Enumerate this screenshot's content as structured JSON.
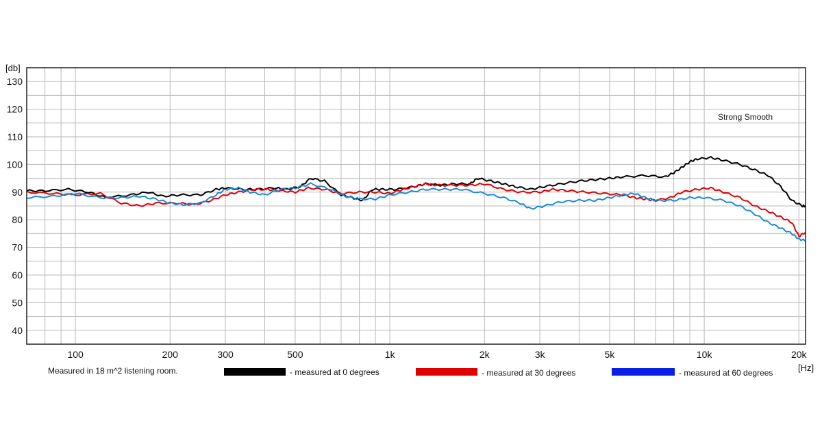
{
  "chart_data": {
    "type": "line",
    "title": "",
    "annotation": "Strong Smooth",
    "footnote": "Measured in 18 m^2  listening room.",
    "xlabel": "[Hz]",
    "ylabel": "[db]",
    "xscale": "log",
    "xlim": [
      70,
      21000
    ],
    "ylim": [
      35,
      135
    ],
    "yticks": [
      40,
      50,
      60,
      70,
      80,
      90,
      100,
      110,
      120,
      130
    ],
    "xticks": [
      {
        "value": 100,
        "label": "100"
      },
      {
        "value": 200,
        "label": "200"
      },
      {
        "value": 300,
        "label": "300"
      },
      {
        "value": 500,
        "label": "500"
      },
      {
        "value": 1000,
        "label": "1k"
      },
      {
        "value": 2000,
        "label": "2k"
      },
      {
        "value": 3000,
        "label": "3k"
      },
      {
        "value": 5000,
        "label": "5k"
      },
      {
        "value": 10000,
        "label": "10k"
      },
      {
        "value": 20000,
        "label": "20k"
      }
    ],
    "grid": true,
    "legend_position": "bottom",
    "series": [
      {
        "name": "- measured at 0 degrees",
        "color": "#000000",
        "points": [
          [
            70,
            90.5
          ],
          [
            80,
            90.5
          ],
          [
            95,
            91
          ],
          [
            110,
            90
          ],
          [
            125,
            88
          ],
          [
            150,
            89
          ],
          [
            170,
            90
          ],
          [
            190,
            88.5
          ],
          [
            215,
            89
          ],
          [
            250,
            89
          ],
          [
            280,
            91
          ],
          [
            300,
            91.5
          ],
          [
            340,
            91
          ],
          [
            380,
            91
          ],
          [
            430,
            91.5
          ],
          [
            470,
            91
          ],
          [
            520,
            92
          ],
          [
            560,
            95
          ],
          [
            620,
            94
          ],
          [
            700,
            89
          ],
          [
            760,
            88
          ],
          [
            820,
            87
          ],
          [
            880,
            91
          ],
          [
            950,
            91
          ],
          [
            1050,
            91
          ],
          [
            1200,
            92
          ],
          [
            1300,
            93
          ],
          [
            1450,
            92.5
          ],
          [
            1600,
            93
          ],
          [
            1800,
            93
          ],
          [
            1900,
            95
          ],
          [
            2100,
            94
          ],
          [
            2300,
            93
          ],
          [
            2500,
            92
          ],
          [
            2800,
            91
          ],
          [
            3100,
            92
          ],
          [
            3500,
            93
          ],
          [
            4000,
            94
          ],
          [
            4500,
            94.5
          ],
          [
            5000,
            95
          ],
          [
            5500,
            95.5
          ],
          [
            6500,
            96
          ],
          [
            7500,
            95.5
          ],
          [
            8000,
            97
          ],
          [
            8500,
            99
          ],
          [
            9000,
            101
          ],
          [
            9500,
            102
          ],
          [
            10500,
            102.5
          ],
          [
            11500,
            101.5
          ],
          [
            13000,
            100
          ],
          [
            14500,
            98
          ],
          [
            16000,
            96
          ],
          [
            17500,
            92
          ],
          [
            19000,
            87
          ],
          [
            20500,
            85
          ],
          [
            21000,
            85
          ]
        ]
      },
      {
        "name": "- measured at 30 degrees",
        "color": "#e00000",
        "points": [
          [
            70,
            90
          ],
          [
            85,
            89.5
          ],
          [
            100,
            89
          ],
          [
            120,
            89.5
          ],
          [
            140,
            86
          ],
          [
            160,
            85
          ],
          [
            180,
            86
          ],
          [
            210,
            86
          ],
          [
            240,
            85.5
          ],
          [
            270,
            87
          ],
          [
            300,
            89
          ],
          [
            330,
            90
          ],
          [
            370,
            91
          ],
          [
            410,
            91
          ],
          [
            450,
            90.5
          ],
          [
            500,
            90
          ],
          [
            550,
            91.5
          ],
          [
            620,
            91
          ],
          [
            700,
            89.5
          ],
          [
            800,
            90
          ],
          [
            900,
            90
          ],
          [
            1000,
            89.5
          ],
          [
            1100,
            91
          ],
          [
            1200,
            92
          ],
          [
            1300,
            93
          ],
          [
            1400,
            92.5
          ],
          [
            1600,
            92.5
          ],
          [
            1800,
            92.5
          ],
          [
            2000,
            93
          ],
          [
            2300,
            91
          ],
          [
            2600,
            90
          ],
          [
            3000,
            90
          ],
          [
            3300,
            91
          ],
          [
            3700,
            90.5
          ],
          [
            4200,
            90
          ],
          [
            4800,
            89.5
          ],
          [
            5500,
            89
          ],
          [
            6000,
            88
          ],
          [
            6500,
            87.5
          ],
          [
            7000,
            87
          ],
          [
            7800,
            88
          ],
          [
            8500,
            90
          ],
          [
            9500,
            91
          ],
          [
            10500,
            91.5
          ],
          [
            11500,
            90
          ],
          [
            13000,
            88
          ],
          [
            14500,
            85
          ],
          [
            16000,
            83
          ],
          [
            17500,
            81
          ],
          [
            19000,
            79
          ],
          [
            20000,
            74
          ],
          [
            21000,
            75.5
          ]
        ]
      },
      {
        "name": "- measured at 60 degrees",
        "color": "#1a8ad8",
        "points": [
          [
            70,
            88
          ],
          [
            85,
            88.5
          ],
          [
            100,
            89.5
          ],
          [
            120,
            88
          ],
          [
            140,
            88
          ],
          [
            160,
            88.5
          ],
          [
            180,
            87.5
          ],
          [
            200,
            86
          ],
          [
            220,
            85.5
          ],
          [
            250,
            86
          ],
          [
            280,
            89
          ],
          [
            300,
            91
          ],
          [
            330,
            91.5
          ],
          [
            360,
            90
          ],
          [
            400,
            89
          ],
          [
            450,
            91
          ],
          [
            500,
            91.5
          ],
          [
            560,
            93
          ],
          [
            650,
            91
          ],
          [
            720,
            88.5
          ],
          [
            800,
            87.5
          ],
          [
            900,
            87.5
          ],
          [
            1000,
            89
          ],
          [
            1150,
            90
          ],
          [
            1300,
            91
          ],
          [
            1500,
            91
          ],
          [
            1700,
            91
          ],
          [
            2000,
            89.5
          ],
          [
            2300,
            88
          ],
          [
            2600,
            86
          ],
          [
            2800,
            84
          ],
          [
            3100,
            85
          ],
          [
            3500,
            86.5
          ],
          [
            4000,
            87
          ],
          [
            4500,
            87
          ],
          [
            5000,
            88
          ],
          [
            5500,
            89
          ],
          [
            6000,
            89.5
          ],
          [
            6500,
            88
          ],
          [
            7000,
            87
          ],
          [
            8000,
            87
          ],
          [
            9000,
            88
          ],
          [
            10000,
            88
          ],
          [
            11500,
            87
          ],
          [
            13000,
            85
          ],
          [
            14500,
            82
          ],
          [
            16000,
            79
          ],
          [
            17500,
            77
          ],
          [
            19000,
            75
          ],
          [
            20000,
            73
          ],
          [
            21000,
            72.5
          ]
        ]
      }
    ]
  }
}
